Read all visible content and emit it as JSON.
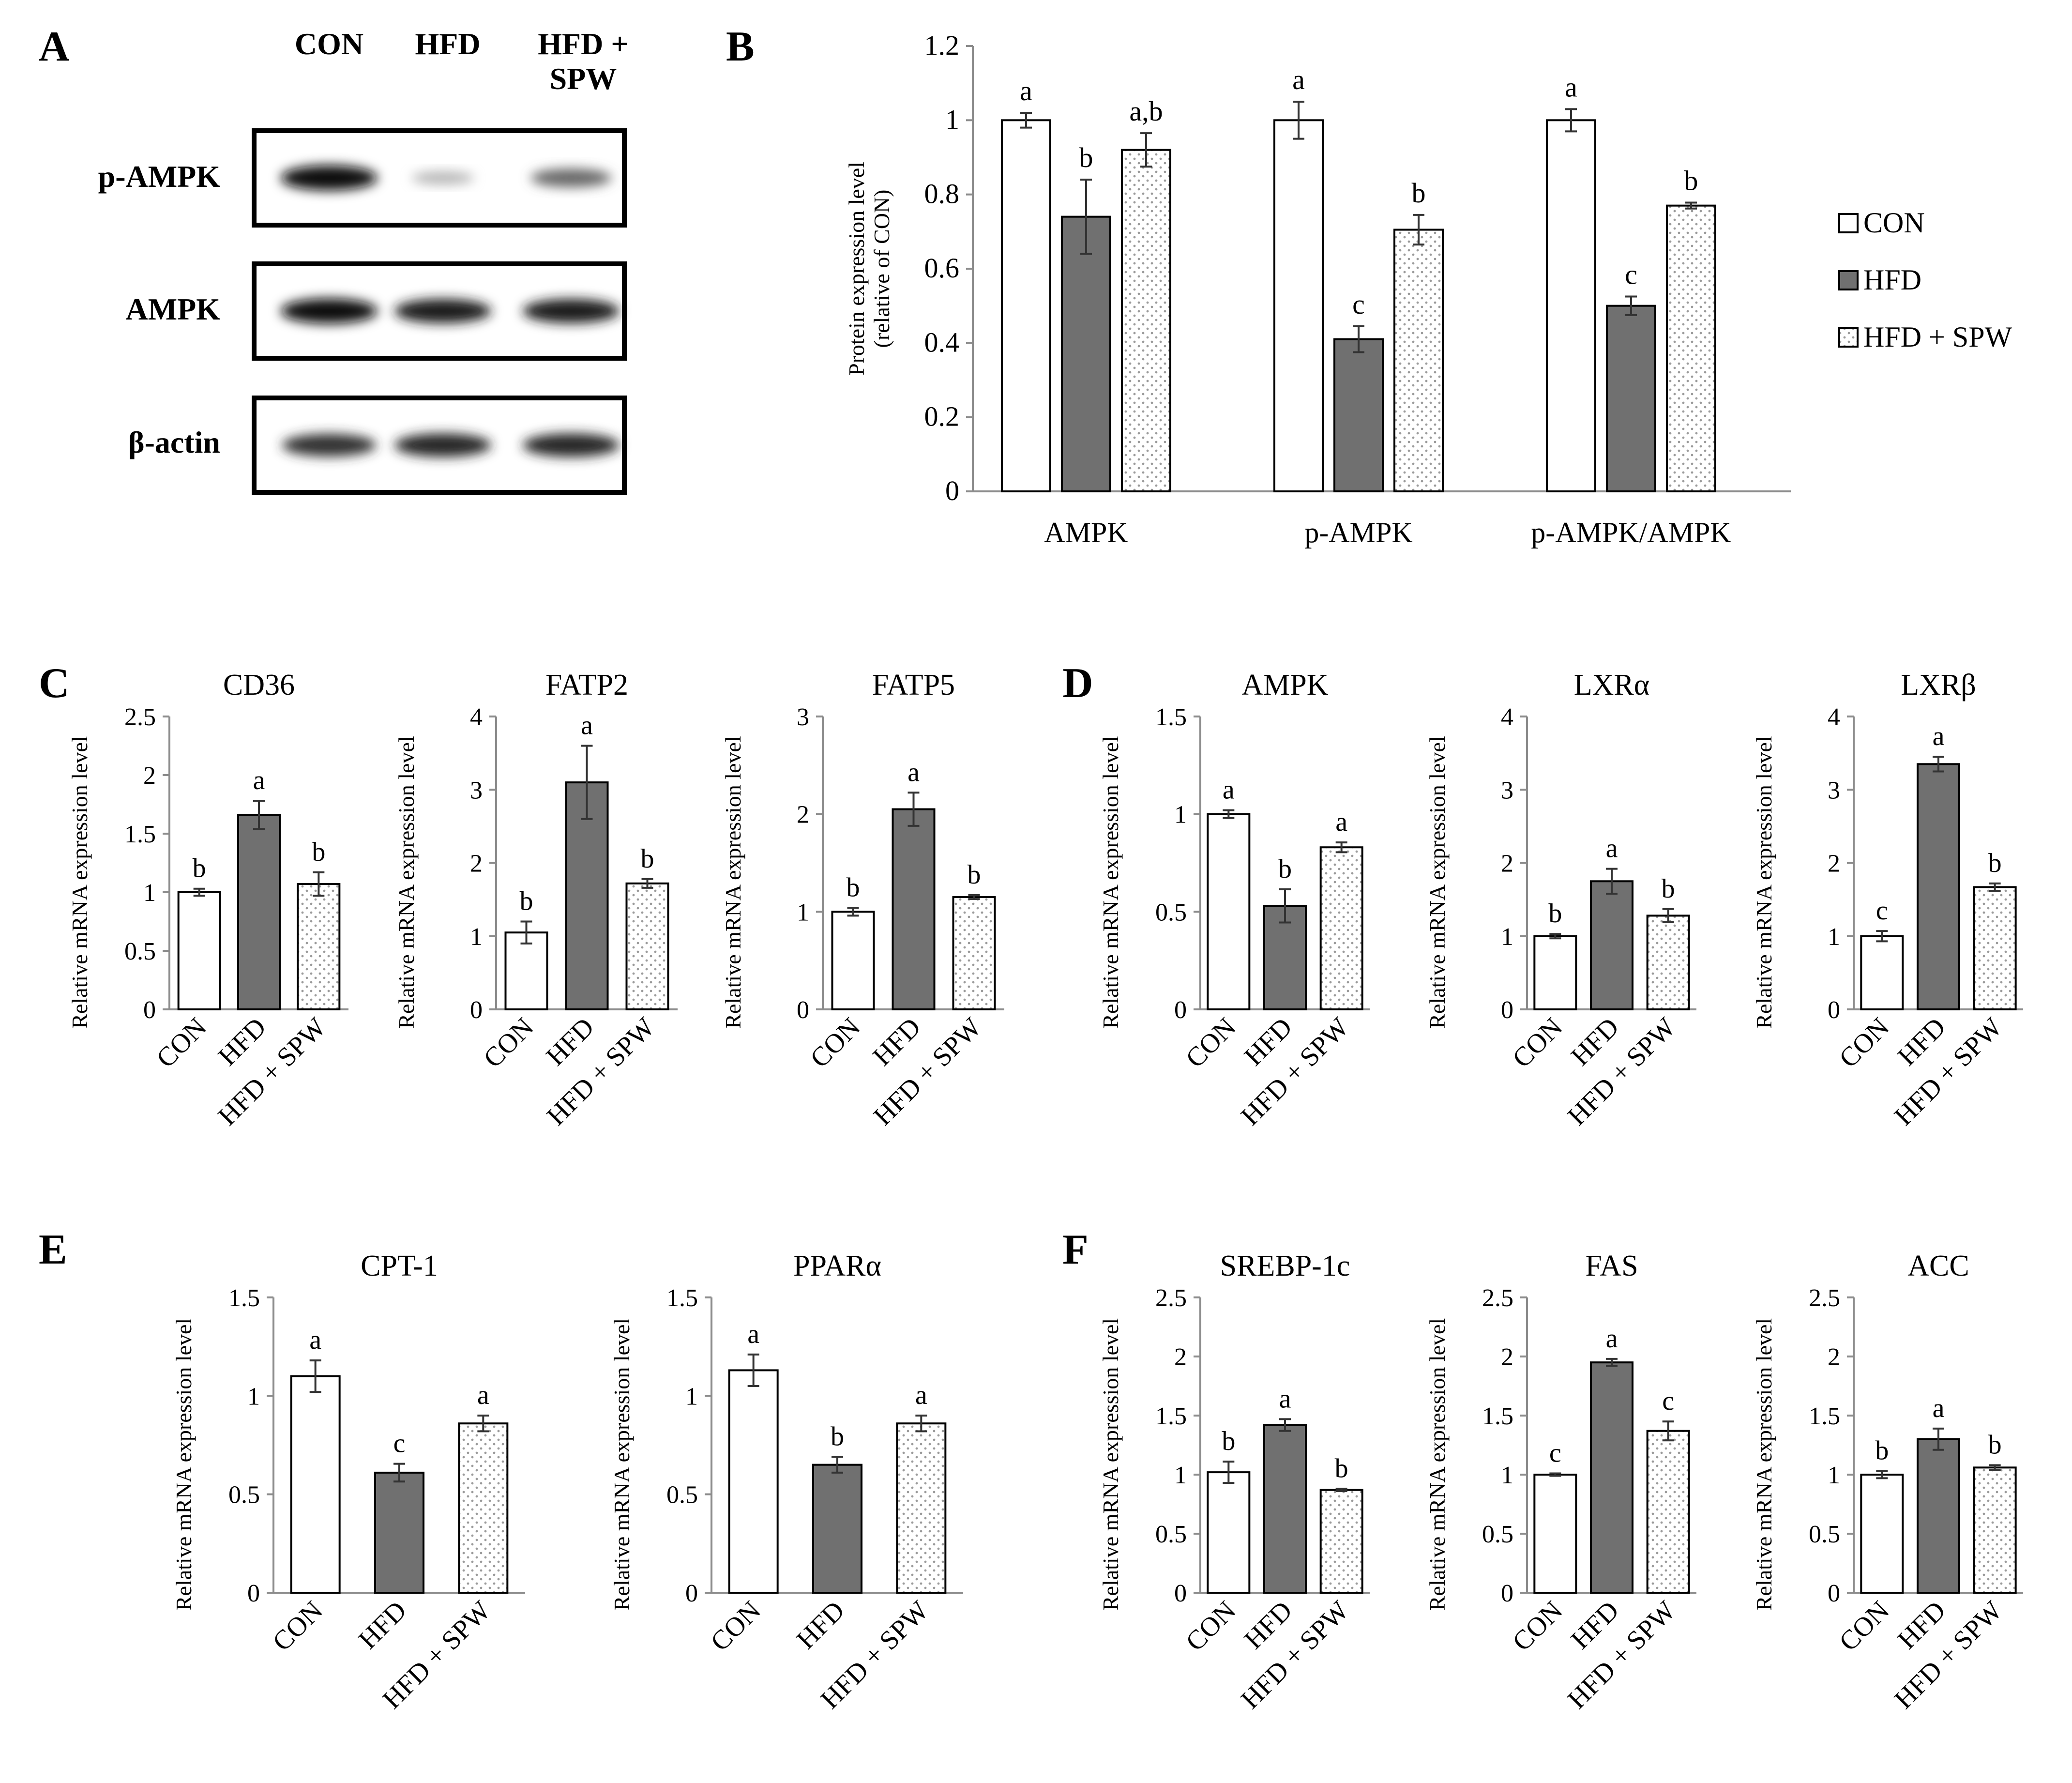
{
  "colors": {
    "CON": "#ffffff",
    "HFD": "#707070",
    "HFD + SPW": "#ffffff",
    "stroke": "#000000",
    "dots": "#9a9a9a",
    "blot_band": "#141414",
    "axis": "#8c8c8c"
  },
  "panel_labels": [
    "A",
    "B",
    "C",
    "D",
    "E",
    "F"
  ],
  "western_blot": {
    "lane_labels": [
      "CON",
      "HFD",
      "HFD +\nSPW"
    ],
    "rows": [
      {
        "label": "p-AMPK",
        "intensities": [
          1.0,
          0.25,
          0.6
        ]
      },
      {
        "label": "AMPK",
        "intensities": [
          1.0,
          0.95,
          0.95
        ]
      },
      {
        "label": "β-actin",
        "intensities": [
          0.85,
          0.9,
          0.9
        ]
      }
    ]
  },
  "chart_data": [
    {
      "id": "B",
      "type": "bar",
      "categories": [
        "AMPK",
        "p-AMPK",
        "p-AMPK/AMPK"
      ],
      "series": [
        {
          "name": "CON",
          "values": [
            1.0,
            1.0,
            1.0
          ],
          "errors": [
            0.02,
            0.05,
            0.03
          ],
          "letters": [
            "a",
            "a",
            "a"
          ]
        },
        {
          "name": "HFD",
          "values": [
            0.74,
            0.41,
            0.5
          ],
          "errors": [
            0.1,
            0.035,
            0.025
          ],
          "letters": [
            "b",
            "c",
            "c"
          ]
        },
        {
          "name": "HFD + SPW",
          "values": [
            0.92,
            0.705,
            0.77
          ],
          "errors": [
            0.045,
            0.04,
            0.008
          ],
          "letters": [
            "a,b",
            "b",
            "b"
          ]
        }
      ],
      "ylabel": "Protein expression level\n(relative of CON)",
      "ylim": [
        0,
        1.2
      ],
      "yticks": [
        "0",
        "0.2",
        "0.4",
        "0.6",
        "0.8",
        "1",
        "1.2"
      ],
      "legend": [
        "CON",
        "HFD",
        "HFD + SPW"
      ]
    },
    {
      "id": "C1",
      "type": "bar",
      "title": "CD36",
      "categories": [
        "CON",
        "HFD",
        "HFD + SPW"
      ],
      "values": [
        1.0,
        1.66,
        1.07
      ],
      "errors": [
        0.03,
        0.12,
        0.1
      ],
      "letters": [
        "b",
        "a",
        "b"
      ],
      "ylabel": "Relative mRNA expression level",
      "ylim": [
        0,
        2.5
      ],
      "yticks": [
        "0",
        "0.5",
        "1",
        "1.5",
        "2",
        "2.5"
      ]
    },
    {
      "id": "C2",
      "type": "bar",
      "title": "FATP2",
      "categories": [
        "CON",
        "HFD",
        "HFD + SPW"
      ],
      "values": [
        1.05,
        3.1,
        1.72
      ],
      "errors": [
        0.15,
        0.5,
        0.06
      ],
      "letters": [
        "b",
        "a",
        "b"
      ],
      "ylabel": "Relative mRNA expression level",
      "ylim": [
        0,
        4
      ],
      "yticks": [
        "0",
        "1",
        "2",
        "3",
        "4"
      ]
    },
    {
      "id": "C3",
      "type": "bar",
      "title": "FATP5",
      "categories": [
        "CON",
        "HFD",
        "HFD + SPW"
      ],
      "values": [
        1.0,
        2.05,
        1.15
      ],
      "errors": [
        0.04,
        0.17,
        0.02
      ],
      "letters": [
        "b",
        "a",
        "b"
      ],
      "ylabel": "Relative mRNA expression level",
      "ylim": [
        0,
        3
      ],
      "yticks": [
        "0",
        "1",
        "2",
        "3"
      ]
    },
    {
      "id": "D1",
      "type": "bar",
      "title": "AMPK",
      "categories": [
        "CON",
        "HFD",
        "HFD + SPW"
      ],
      "values": [
        1.0,
        0.53,
        0.83
      ],
      "errors": [
        0.02,
        0.085,
        0.025
      ],
      "letters": [
        "a",
        "b",
        "a"
      ],
      "ylabel": "Relative mRNA expression level",
      "ylim": [
        0,
        1.5
      ],
      "yticks": [
        "0",
        "0.5",
        "1",
        "1.5"
      ]
    },
    {
      "id": "D2",
      "type": "bar",
      "title": "LXRα",
      "categories": [
        "CON",
        "HFD",
        "HFD + SPW"
      ],
      "values": [
        1.0,
        1.75,
        1.28
      ],
      "errors": [
        0.03,
        0.17,
        0.09
      ],
      "letters": [
        "b",
        "a",
        "b"
      ],
      "ylabel": "Relative mRNA expression level",
      "ylim": [
        0,
        4
      ],
      "yticks": [
        "0",
        "1",
        "2",
        "3",
        "4"
      ]
    },
    {
      "id": "D3",
      "type": "bar",
      "title": "LXRβ",
      "categories": [
        "CON",
        "HFD",
        "HFD + SPW"
      ],
      "values": [
        1.0,
        3.35,
        1.67
      ],
      "errors": [
        0.07,
        0.1,
        0.05
      ],
      "letters": [
        "c",
        "a",
        "b"
      ],
      "ylabel": "Relative mRNA expression level",
      "ylim": [
        0,
        4
      ],
      "yticks": [
        "0",
        "1",
        "2",
        "3",
        "4"
      ]
    },
    {
      "id": "E1",
      "type": "bar",
      "title": "CPT-1",
      "categories": [
        "CON",
        "HFD",
        "HFD + SPW"
      ],
      "values": [
        1.1,
        0.61,
        0.86
      ],
      "errors": [
        0.08,
        0.045,
        0.04
      ],
      "letters": [
        "a",
        "c",
        "a"
      ],
      "ylabel": "Relative mRNA expression level",
      "ylim": [
        0,
        1.5
      ],
      "yticks": [
        "0",
        "0.5",
        "1",
        "1.5"
      ]
    },
    {
      "id": "E2",
      "type": "bar",
      "title": "PPARα",
      "categories": [
        "CON",
        "HFD",
        "HFD + SPW"
      ],
      "values": [
        1.13,
        0.65,
        0.86
      ],
      "errors": [
        0.08,
        0.04,
        0.04
      ],
      "letters": [
        "a",
        "b",
        "a"
      ],
      "ylabel": "Relative mRNA expression level",
      "ylim": [
        0,
        1.5
      ],
      "yticks": [
        "0",
        "0.5",
        "1",
        "1.5"
      ]
    },
    {
      "id": "F1",
      "type": "bar",
      "title": "SREBP-1c",
      "categories": [
        "CON",
        "HFD",
        "HFD + SPW"
      ],
      "values": [
        1.02,
        1.42,
        0.87
      ],
      "errors": [
        0.09,
        0.05,
        0.01
      ],
      "letters": [
        "b",
        "a",
        "b"
      ],
      "ylabel": "Relative mRNA expression level",
      "ylim": [
        0,
        2.5
      ],
      "yticks": [
        "0",
        "0.5",
        "1",
        "1.5",
        "2",
        "2.5"
      ]
    },
    {
      "id": "F2",
      "type": "bar",
      "title": "FAS",
      "categories": [
        "CON",
        "HFD",
        "HFD + SPW"
      ],
      "values": [
        1.0,
        1.95,
        1.37
      ],
      "errors": [
        0.01,
        0.03,
        0.08
      ],
      "letters": [
        "c",
        "a",
        "c"
      ],
      "ylabel": "Relative mRNA expression level",
      "ylim": [
        0,
        2.5
      ],
      "yticks": [
        "0",
        "0.5",
        "1",
        "1.5",
        "2",
        "2.5"
      ]
    },
    {
      "id": "F3",
      "type": "bar",
      "title": "ACC",
      "categories": [
        "CON",
        "HFD",
        "HFD + SPW"
      ],
      "values": [
        1.0,
        1.3,
        1.06
      ],
      "errors": [
        0.03,
        0.09,
        0.02
      ],
      "letters": [
        "b",
        "a",
        "b"
      ],
      "ylabel": "Relative mRNA expression level",
      "ylim": [
        0,
        2.5
      ],
      "yticks": [
        "0",
        "0.5",
        "1",
        "1.5",
        "2",
        "2.5"
      ]
    }
  ]
}
